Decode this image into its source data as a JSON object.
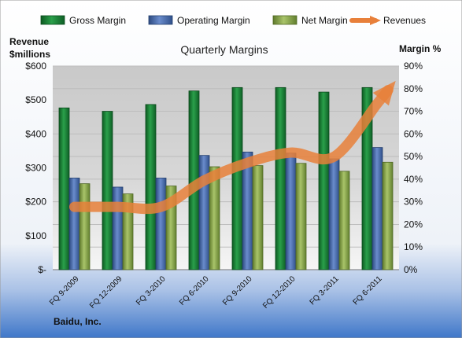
{
  "chart_data": {
    "type": "bar",
    "title": "Quarterly Margins",
    "company": "Baidu, Inc.",
    "y_left_label_line1": "Revenue",
    "y_left_label_line2": "$millions",
    "y_right_label": "Margin %",
    "categories": [
      "FQ 9-2009",
      "FQ 12-2009",
      "FQ 3-2010",
      "FQ 6-2010",
      "FQ 9-2010",
      "FQ 12-2010",
      "FQ 3-2011",
      "FQ 6-2011"
    ],
    "series": [
      {
        "name": "Gross Margin",
        "axis": "right",
        "color": "#1f8a3c",
        "values": [
          71.5,
          70.0,
          73.0,
          79.0,
          80.5,
          80.5,
          78.5,
          80.5
        ]
      },
      {
        "name": "Operating Margin",
        "axis": "right",
        "color": "#4f6fae",
        "values": [
          40.5,
          36.5,
          40.5,
          50.5,
          52.0,
          51.5,
          49.0,
          54.0
        ]
      },
      {
        "name": "Net Margin",
        "axis": "right",
        "color": "#8faa52",
        "values": [
          38.0,
          33.5,
          37.0,
          45.5,
          46.0,
          47.0,
          43.5,
          47.5
        ]
      },
      {
        "name": "Revenues",
        "axis": "left",
        "type": "line",
        "color": "#e8803a",
        "values": [
          185,
          185,
          185,
          263,
          315,
          345,
          333,
          490
        ]
      }
    ],
    "y_left": {
      "min": 0,
      "max": 600,
      "ticks": [
        "$-",
        "$100",
        "$200",
        "$300",
        "$400",
        "$500",
        "$600"
      ]
    },
    "y_right": {
      "min": 0,
      "max": 90,
      "ticks": [
        "0%",
        "10%",
        "20%",
        "30%",
        "40%",
        "50%",
        "60%",
        "70%",
        "80%",
        "90%"
      ]
    },
    "grid": true,
    "legend_position": "top"
  }
}
